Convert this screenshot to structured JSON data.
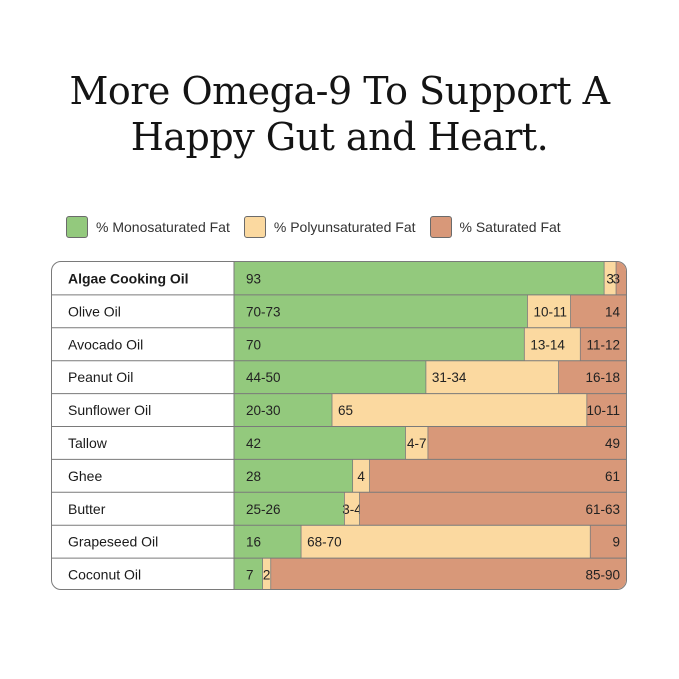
{
  "title": {
    "line1": "More Omega-9 To Support A",
    "line2": "Happy Gut and Heart."
  },
  "colors": {
    "mono": "#93c97d",
    "poly": "#fbd9a0",
    "sat": "#d89879",
    "border": "#7a7a7a",
    "text": "#1a1a1a"
  },
  "legend": [
    {
      "label": "% Monosaturated Fat",
      "color": "#93c97d"
    },
    {
      "label": "% Polyunsaturated Fat",
      "color": "#fbd9a0"
    },
    {
      "label": "% Saturated Fat",
      "color": "#d89879"
    }
  ],
  "chart_data": {
    "type": "bar",
    "stacked": true,
    "orientation": "horizontal",
    "categories": [
      "Algae Cooking Oil",
      "Olive Oil",
      "Avocado Oil",
      "Peanut Oil",
      "Sunflower Oil",
      "Tallow",
      "Ghee",
      "Butter",
      "Grapeseed Oil",
      "Coconut Oil"
    ],
    "highlight_category": "Algae Cooking Oil",
    "series": [
      {
        "name": "% Monosaturated Fat",
        "values": [
          93,
          71.5,
          70,
          47,
          25,
          42,
          28,
          25.5,
          16,
          7
        ],
        "labels": [
          "93",
          "70-73",
          "70",
          "44-50",
          "20-30",
          "42",
          "28",
          "25-26",
          "16",
          "7"
        ]
      },
      {
        "name": "% Polyunsaturated Fat",
        "values": [
          3,
          10.5,
          13.5,
          32.5,
          65,
          5.5,
          4,
          3.5,
          69,
          2
        ],
        "labels": [
          "3",
          "10-11",
          "13-14",
          "31-34",
          "65",
          "4-7",
          "4",
          "3-4",
          "68-70",
          "2"
        ]
      },
      {
        "name": "% Saturated Fat",
        "values": [
          3,
          14,
          11.5,
          17,
          10.5,
          49,
          61,
          62,
          9,
          87.5
        ],
        "labels": [
          "3",
          "14",
          "11-12",
          "16-18",
          "10-11",
          "49",
          "61",
          "61-63",
          "9",
          "85-90"
        ]
      }
    ],
    "xlim": [
      0,
      100
    ]
  }
}
